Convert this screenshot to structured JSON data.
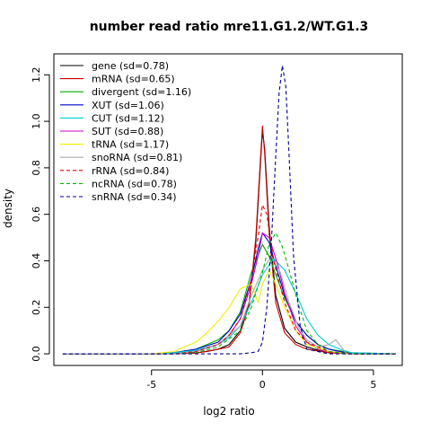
{
  "chart_data": {
    "type": "line",
    "title": "number read ratio mre11.G1.2/WT.G1.3",
    "xlabel": "log2 ratio",
    "ylabel": "density",
    "xlim": [
      -9.4,
      6.3
    ],
    "ylim": [
      -0.05,
      1.29
    ],
    "x_ticks": [
      -5,
      0,
      5
    ],
    "y_ticks": [
      0.0,
      0.2,
      0.4,
      0.6,
      0.8,
      1.0,
      1.2
    ],
    "x_tick_labels": [
      "-5",
      "0",
      "5"
    ],
    "y_tick_labels": [
      "0.0",
      "0.2",
      "0.4",
      "0.6",
      "0.8",
      "1.0",
      "1.2"
    ],
    "legend_position": "top-left",
    "grid": false,
    "series": [
      {
        "name": "gene (sd=0.78)",
        "color": "#000000",
        "dash": "solid",
        "x": [
          -9,
          -4.5,
          -3,
          -2.5,
          -2,
          -1.5,
          -1,
          -0.6,
          -0.3,
          -0.1,
          0,
          0.1,
          0.3,
          0.6,
          1,
          1.5,
          2,
          2.5,
          3,
          4,
          6
        ],
        "y": [
          0,
          0,
          0.005,
          0.01,
          0.02,
          0.04,
          0.1,
          0.22,
          0.48,
          0.8,
          0.96,
          0.88,
          0.55,
          0.25,
          0.11,
          0.05,
          0.03,
          0.015,
          0.005,
          0,
          0
        ]
      },
      {
        "name": "mRNA (sd=0.65)",
        "color": "#cc0000",
        "dash": "solid",
        "x": [
          -9,
          -4,
          -3,
          -2,
          -1.5,
          -1,
          -0.6,
          -0.3,
          -0.1,
          0,
          0.1,
          0.3,
          0.6,
          1,
          1.5,
          2,
          3,
          4,
          6
        ],
        "y": [
          0,
          0,
          0.003,
          0.02,
          0.03,
          0.09,
          0.21,
          0.5,
          0.82,
          0.98,
          0.86,
          0.52,
          0.22,
          0.09,
          0.04,
          0.02,
          0.005,
          0,
          0
        ]
      },
      {
        "name": "divergent (sd=1.16)",
        "color": "#00aa00",
        "dash": "solid",
        "x": [
          -9,
          -5,
          -4,
          -3,
          -2,
          -1.5,
          -1,
          -0.5,
          0,
          0.3,
          0.6,
          1,
          1.5,
          2,
          2.5,
          3,
          4,
          6
        ],
        "y": [
          0,
          0,
          0.005,
          0.02,
          0.06,
          0.1,
          0.18,
          0.35,
          0.47,
          0.42,
          0.34,
          0.24,
          0.14,
          0.08,
          0.04,
          0.02,
          0.005,
          0
        ]
      },
      {
        "name": "XUT (sd=1.06)",
        "color": "#0000cc",
        "dash": "solid",
        "x": [
          -9,
          -5,
          -4,
          -3,
          -2,
          -1.5,
          -1,
          -0.5,
          -0.2,
          0,
          0.3,
          0.6,
          1,
          1.5,
          2,
          2.5,
          3,
          4,
          6
        ],
        "y": [
          0,
          0,
          0.005,
          0.02,
          0.05,
          0.1,
          0.17,
          0.32,
          0.45,
          0.52,
          0.48,
          0.38,
          0.25,
          0.14,
          0.08,
          0.04,
          0.02,
          0,
          0
        ]
      },
      {
        "name": "CUT (sd=1.12)",
        "color": "#00cccc",
        "dash": "solid",
        "x": [
          -9,
          -5,
          -4,
          -3,
          -2,
          -1.5,
          -1,
          -0.5,
          0,
          0.5,
          1,
          1.5,
          2,
          2.5,
          3,
          3.5,
          4,
          6
        ],
        "y": [
          0,
          0,
          0.005,
          0.015,
          0.04,
          0.07,
          0.12,
          0.22,
          0.34,
          0.41,
          0.36,
          0.26,
          0.15,
          0.08,
          0.04,
          0.02,
          0.005,
          0
        ]
      },
      {
        "name": "SUT (sd=0.88)",
        "color": "#cc00cc",
        "dash": "solid",
        "x": [
          -9,
          -4,
          -3,
          -2,
          -1.5,
          -1,
          -0.5,
          -0.2,
          0,
          0.3,
          0.7,
          1,
          1.5,
          2,
          2.5,
          3,
          4,
          6
        ],
        "y": [
          0,
          0,
          0.01,
          0.04,
          0.08,
          0.15,
          0.3,
          0.42,
          0.52,
          0.5,
          0.38,
          0.26,
          0.12,
          0.05,
          0.02,
          0.01,
          0,
          0
        ]
      },
      {
        "name": "tRNA (sd=1.17)",
        "color": "#eeee00",
        "dash": "solid",
        "x": [
          -9,
          -5,
          -4,
          -3,
          -2.5,
          -2,
          -1.5,
          -1,
          -0.5,
          -0.2,
          0,
          0.3,
          0.6,
          1,
          1.5,
          2,
          3,
          4,
          6
        ],
        "y": [
          0,
          0,
          0.01,
          0.05,
          0.09,
          0.14,
          0.2,
          0.28,
          0.3,
          0.22,
          0.3,
          0.36,
          0.3,
          0.2,
          0.1,
          0.04,
          0.01,
          0,
          0
        ]
      },
      {
        "name": "snoRNA (sd=0.81)",
        "color": "#aaaaaa",
        "dash": "solid",
        "x": [
          -9,
          -4,
          -3,
          -2,
          -1,
          -0.5,
          0,
          0.4,
          0.8,
          1.2,
          1.6,
          2,
          2.5,
          3,
          3.3,
          3.8,
          6
        ],
        "y": [
          0,
          0,
          0.01,
          0.04,
          0.12,
          0.25,
          0.36,
          0.42,
          0.35,
          0.22,
          0.12,
          0.06,
          0.03,
          0.04,
          0.06,
          0,
          0
        ]
      },
      {
        "name": "rRNA (sd=0.84)",
        "color": "#dd0000",
        "dash": "dashed",
        "x": [
          -9,
          -4,
          -3,
          -2,
          -1.5,
          -1,
          -0.5,
          -0.2,
          0,
          0.2,
          0.5,
          1,
          1.5,
          2,
          3,
          4,
          6
        ],
        "y": [
          0,
          0,
          0.01,
          0.04,
          0.08,
          0.15,
          0.32,
          0.5,
          0.64,
          0.6,
          0.4,
          0.22,
          0.1,
          0.05,
          0.01,
          0,
          0
        ]
      },
      {
        "name": "ncRNA (sd=0.78)",
        "color": "#00bb00",
        "dash": "dashed",
        "x": [
          -9,
          -4,
          -3,
          -2,
          -1,
          -0.5,
          0,
          0.3,
          0.6,
          0.9,
          1.2,
          1.6,
          2,
          2.5,
          3,
          4,
          6
        ],
        "y": [
          0,
          0,
          0.005,
          0.03,
          0.1,
          0.2,
          0.35,
          0.47,
          0.52,
          0.46,
          0.36,
          0.22,
          0.1,
          0.04,
          0.01,
          0,
          0
        ]
      },
      {
        "name": "snRNA (sd=0.34)",
        "color": "#000099",
        "dash": "dashed",
        "x": [
          -9,
          -1,
          -0.5,
          -0.2,
          0,
          0.2,
          0.4,
          0.6,
          0.75,
          0.9,
          1.05,
          1.2,
          1.4,
          1.7,
          2,
          3,
          6
        ],
        "y": [
          0,
          0,
          0.005,
          0.01,
          0.05,
          0.2,
          0.48,
          0.85,
          1.12,
          1.24,
          1.15,
          0.85,
          0.42,
          0.12,
          0.02,
          0,
          0
        ]
      }
    ]
  }
}
